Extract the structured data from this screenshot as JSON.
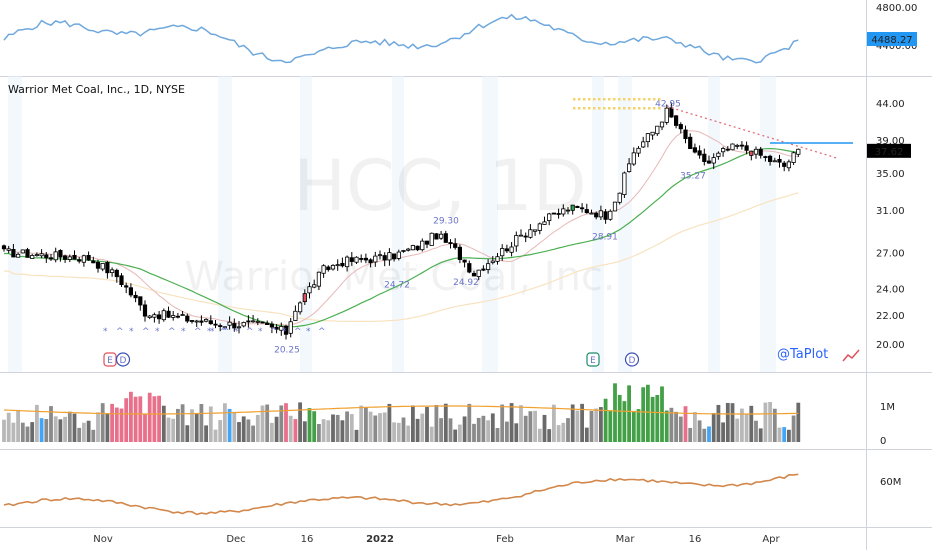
{
  "title": "Warrior Met Coal, Inc., 1D, NYSE",
  "watermark_symbol": "HCC, 1D",
  "watermark_name": "Warrior Met Coal, Inc.",
  "brand": "@TaPlot",
  "colors": {
    "up_candle": "#ffffff",
    "down_candle": "#000000",
    "green_candle": "#2ea043",
    "red_candle": "#e0505a",
    "index_line": "#6fa8dc",
    "ma_short": "#e8b7b7",
    "ma_mid": "#4caf50",
    "ma_long": "#f8e3c0",
    "resistance": "#e0707a",
    "breakout": "#2196f3",
    "obv_line": "#d2874b",
    "volume_ma": "#f0a030"
  },
  "index_pane": {
    "ticks": [
      "4800.00",
      "4400.00"
    ],
    "last": "4488.27"
  },
  "price_pane": {
    "ticks": [
      "44.00",
      "39.00",
      "35.00",
      "31.00",
      "27.00",
      "24.00",
      "22.00",
      "20.00"
    ],
    "last": "37.62",
    "pivots": [
      "42.95",
      "29.30",
      "24.72",
      "24.92",
      "28.91",
      "20.25",
      "35.27"
    ],
    "events": [
      "E",
      "D",
      "E",
      "D"
    ]
  },
  "volume_pane": {
    "ticks": [
      "1M",
      "0"
    ]
  },
  "obv_pane": {
    "ticks": [
      "60M"
    ]
  },
  "time_axis": [
    "Nov",
    "Dec",
    "16",
    "2022",
    "Feb",
    "Mar",
    "16",
    "Apr"
  ],
  "chart_data": {
    "type": "line",
    "x": [
      "Nov",
      "Dec",
      "16",
      "2022",
      "Feb",
      "Mar",
      "16",
      "Apr"
    ],
    "series": [
      {
        "values": [
          24,
          21.5,
          21,
          26,
          27,
          40,
          37,
          37.5
        ]
      }
    ],
    "ylim": [
      19.5,
      45
    ],
    "grid": false,
    "legend": "none"
  }
}
